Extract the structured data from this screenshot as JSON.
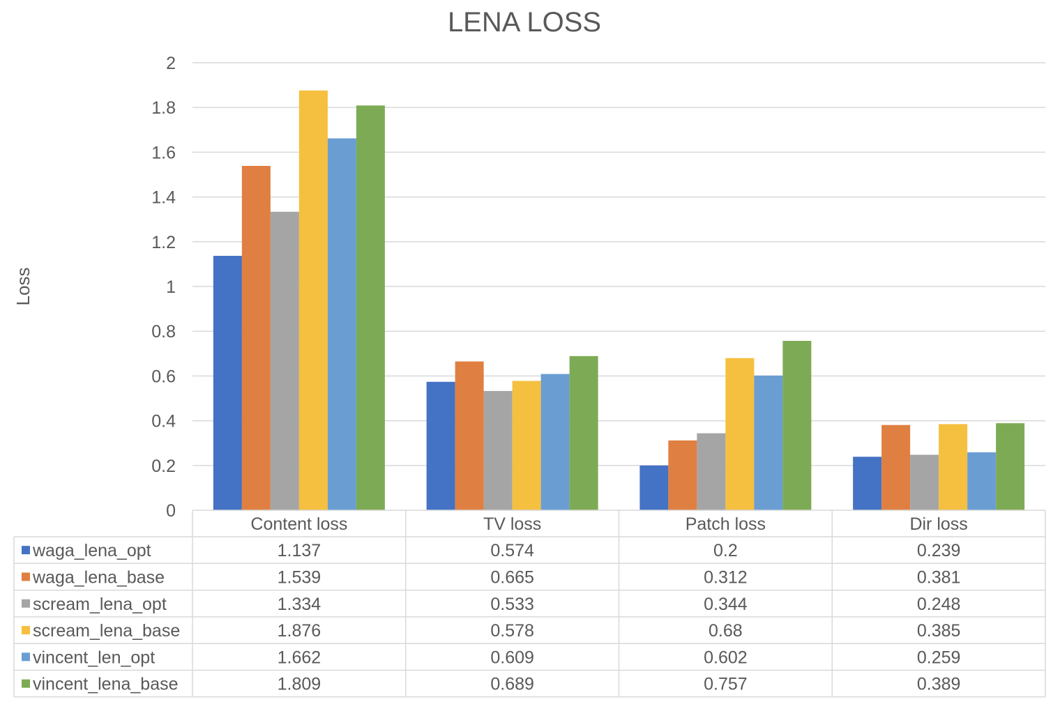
{
  "chart_data": {
    "type": "bar",
    "title": "LENA LOSS",
    "xlabel": "",
    "ylabel": "Loss",
    "ylim": [
      0,
      2
    ],
    "yticks": [
      "0",
      "0.2",
      "0.4",
      "0.6",
      "0.8",
      "1",
      "1.2",
      "1.4",
      "1.6",
      "1.8",
      "2"
    ],
    "grid": true,
    "legend": "data-table",
    "categories": [
      "Content loss",
      "TV loss",
      "Patch loss",
      "Dir loss"
    ],
    "series": [
      {
        "name": "waga_lena_opt",
        "color": "#4472C4",
        "values": [
          1.137,
          0.574,
          0.2,
          0.239
        ],
        "labels": [
          "1.137",
          "0.574",
          "0.2",
          "0.239"
        ]
      },
      {
        "name": "waga_lena_base",
        "color": "#E07F42",
        "values": [
          1.539,
          0.665,
          0.312,
          0.381
        ],
        "labels": [
          "1.539",
          "0.665",
          "0.312",
          "0.381"
        ]
      },
      {
        "name": "scream_lena_opt",
        "color": "#A5A5A5",
        "values": [
          1.334,
          0.533,
          0.344,
          0.248
        ],
        "labels": [
          "1.334",
          "0.533",
          "0.344",
          "0.248"
        ]
      },
      {
        "name": "scream_lena_base",
        "color": "#F5BF3F",
        "values": [
          1.876,
          0.578,
          0.68,
          0.385
        ],
        "labels": [
          "1.876",
          "0.578",
          "0.68",
          "0.385"
        ]
      },
      {
        "name": "vincent_len_opt",
        "color": "#6A9ED3",
        "values": [
          1.662,
          0.609,
          0.602,
          0.259
        ],
        "labels": [
          "1.662",
          "0.609",
          "0.602",
          "0.259"
        ]
      },
      {
        "name": "vincent_lena_base",
        "color": "#7DAB55",
        "values": [
          1.809,
          0.689,
          0.757,
          0.389
        ],
        "labels": [
          "1.809",
          "0.689",
          "0.757",
          "0.389"
        ]
      }
    ]
  },
  "colors": {
    "text": "#595959",
    "grid": "#D9D9D9",
    "background": "#FFFFFF"
  }
}
